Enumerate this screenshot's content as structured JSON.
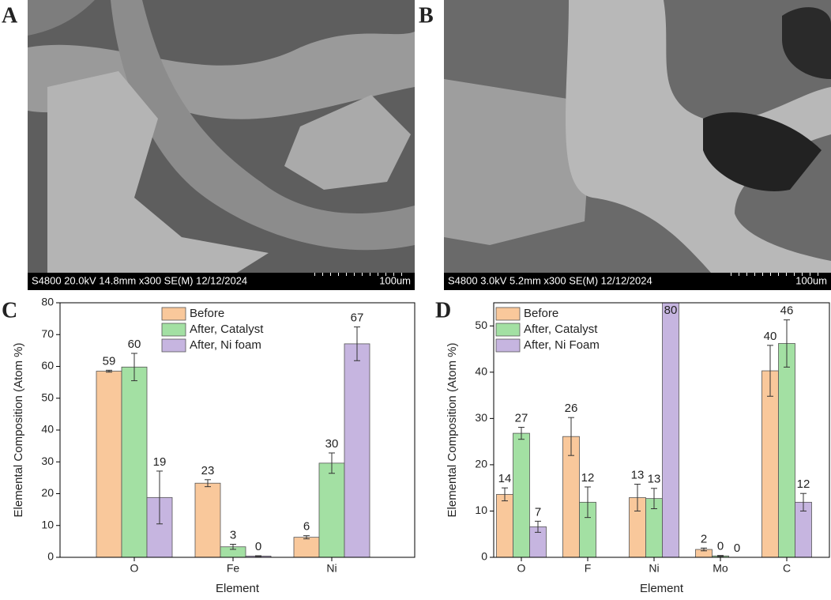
{
  "panels": [
    {
      "label": "A",
      "info": "S4800 20.0kV 14.8mm x300 SE(M) 12/12/2024",
      "scale": "100um"
    },
    {
      "label": "B",
      "info": "S4800 3.0kV 5.2mm x300 SE(M) 12/12/2024",
      "scale": "100um"
    }
  ],
  "chart_data": [
    {
      "type": "bar",
      "panel_label": "C",
      "x_label": "Element",
      "y_label": "Elemental Composition (Atom %)",
      "categories": [
        "O",
        "Fe",
        "Ni"
      ],
      "series": [
        {
          "name": "Before",
          "color": "#f9c89b",
          "values": [
            58.5,
            23.3,
            6.3
          ],
          "errors": [
            0.3,
            1.1,
            0.5
          ],
          "value_labels": [
            "59",
            "23",
            "6"
          ]
        },
        {
          "name": "After, Catalyst",
          "color": "#a3e0a3",
          "values": [
            59.8,
            3.3,
            29.6
          ],
          "errors": [
            4.3,
            0.8,
            3.2
          ],
          "value_labels": [
            "60",
            "3",
            "30"
          ]
        },
        {
          "name": "After, Ni foam",
          "color": "#c6b5e0",
          "values": [
            18.8,
            0.4,
            67.1
          ],
          "errors": [
            8.3,
            0.1,
            5.3
          ],
          "value_labels": [
            "19",
            "0",
            "67"
          ]
        }
      ],
      "ylim": [
        0,
        80
      ],
      "yticks": [
        0,
        10,
        20,
        30,
        40,
        50,
        60,
        70,
        80
      ],
      "legend": "upper center"
    },
    {
      "type": "bar",
      "panel_label": "D",
      "x_label": "Element",
      "y_label": "Elemental Composition (Atom %)",
      "categories": [
        "O",
        "F",
        "Ni",
        "Mo",
        "C"
      ],
      "series": [
        {
          "name": "Before",
          "color": "#f9c89b",
          "values": [
            13.6,
            26.1,
            12.9,
            1.7,
            40.3
          ],
          "errors": [
            1.4,
            4.1,
            2.9,
            0.3,
            5.5
          ],
          "value_labels": [
            "14",
            "26",
            "13",
            "2",
            "40"
          ]
        },
        {
          "name": "After, Catalyst",
          "color": "#a3e0a3",
          "values": [
            26.8,
            11.9,
            12.7,
            0.3,
            46.2
          ],
          "errors": [
            1.3,
            3.3,
            2.2,
            0.1,
            5.1
          ],
          "value_labels": [
            "27",
            "12",
            "13",
            "0",
            "46"
          ]
        },
        {
          "name": "After, Ni Foam",
          "color": "#c6b5e0",
          "values": [
            6.6,
            null,
            80,
            0,
            11.9
          ],
          "errors": [
            1.2,
            null,
            null,
            null,
            1.9
          ],
          "value_labels": [
            "7",
            null,
            "80",
            "0",
            "12"
          ]
        }
      ],
      "ylim": [
        0,
        55
      ],
      "yticks": [
        0,
        10,
        20,
        30,
        40,
        50
      ],
      "legend": "upper left"
    }
  ]
}
